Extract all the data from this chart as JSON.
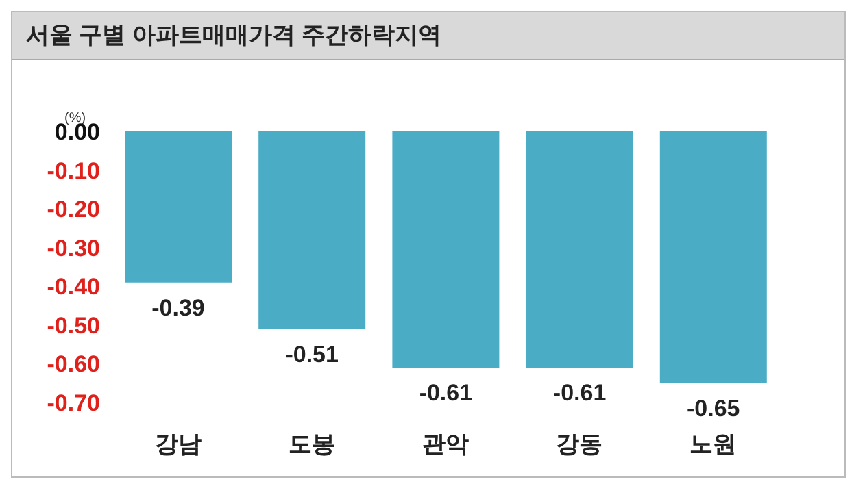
{
  "chart_data": {
    "type": "bar",
    "title": "서울 구별 아파트매매가격 주간하락지역",
    "ylabel": "(%)",
    "categories": [
      "강남",
      "도봉",
      "관악",
      "강동",
      "노원"
    ],
    "values": [
      -0.39,
      -0.51,
      -0.61,
      -0.61,
      -0.65
    ],
    "color": "#4bacc6",
    "ylim": [
      -0.7,
      0
    ],
    "yticks": [
      {
        "value": 0,
        "label": "0.00"
      },
      {
        "value": -0.1,
        "label": "-0.10"
      },
      {
        "value": -0.2,
        "label": "-0.20"
      },
      {
        "value": -0.3,
        "label": "-0.30"
      },
      {
        "value": -0.4,
        "label": "-0.40"
      },
      {
        "value": -0.5,
        "label": "-0.50"
      },
      {
        "value": -0.6,
        "label": "-0.60"
      },
      {
        "value": -0.7,
        "label": "-0.70"
      }
    ],
    "data_labels": true,
    "grid": false
  }
}
